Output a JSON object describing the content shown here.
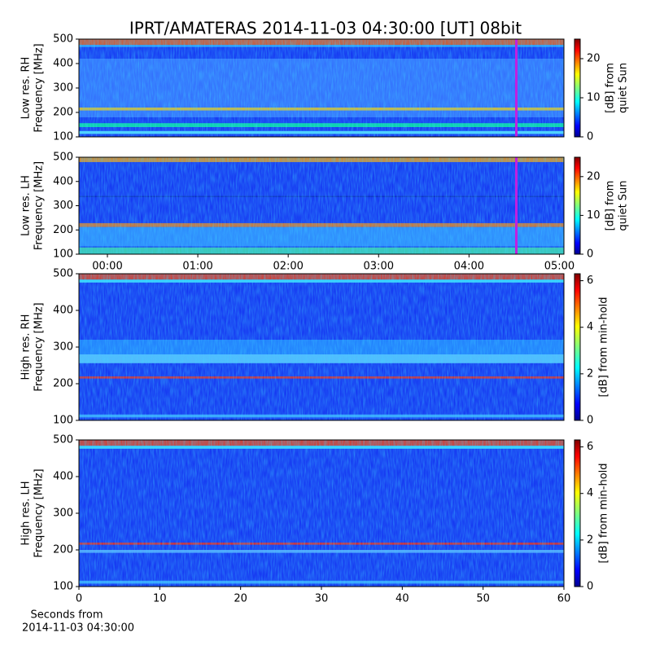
{
  "title": "IPRT/AMATERAS 2014-11-03 04:30:00 [UT]   08bit",
  "chart_data": [
    {
      "type": "heatmap",
      "ylabel": [
        "Low res. RH",
        "Frequency [MHz]"
      ],
      "ylim": [
        100,
        500
      ],
      "yticks": [
        100,
        200,
        300,
        400,
        500
      ],
      "xlim": [
        -0.315,
        5.05
      ],
      "colorbar_label": [
        "[dB] from",
        "quiet Sun"
      ],
      "clim": [
        0,
        25
      ],
      "cticks": [
        0,
        10,
        20
      ]
    },
    {
      "type": "heatmap",
      "ylabel": [
        "Low res. LH",
        "Frequency [MHz]"
      ],
      "ylim": [
        100,
        500
      ],
      "yticks": [
        100,
        200,
        300,
        400,
        500
      ],
      "xlim": [
        -0.315,
        5.05
      ],
      "xticks": [
        {
          "value": 0,
          "label": "00:00"
        },
        {
          "value": 1,
          "label": "01:00"
        },
        {
          "value": 2,
          "label": "02:00"
        },
        {
          "value": 3,
          "label": "03:00"
        },
        {
          "value": 4,
          "label": "04:00"
        },
        {
          "value": 5,
          "label": "05:00"
        }
      ],
      "colorbar_label": [
        "[dB] from",
        "quiet Sun"
      ],
      "clim": [
        0,
        25
      ],
      "cticks": [
        0,
        10,
        20
      ]
    },
    {
      "type": "heatmap",
      "ylabel": [
        "High res. RH",
        "Frequency [MHz]"
      ],
      "ylim": [
        100,
        500
      ],
      "yticks": [
        100,
        200,
        300,
        400,
        500
      ],
      "xlim": [
        0,
        60
      ],
      "colorbar_label": [
        "[dB] from min-hold"
      ],
      "clim": [
        0,
        6.3
      ],
      "cticks": [
        0,
        2,
        4,
        6
      ]
    },
    {
      "type": "heatmap",
      "ylabel": [
        "High res. LH",
        "Frequency [MHz]"
      ],
      "ylim": [
        100,
        500
      ],
      "yticks": [
        100,
        200,
        300,
        400,
        500
      ],
      "xlim": [
        0,
        60
      ],
      "xticks": [
        0,
        10,
        20,
        30,
        40,
        50,
        60
      ],
      "xlabel": [
        "Seconds from",
        "2014-11-03 04:30:00"
      ],
      "colorbar_label": [
        "[dB] from min-hold"
      ],
      "clim": [
        0,
        6.3
      ],
      "cticks": [
        0,
        2,
        4,
        6
      ]
    }
  ]
}
